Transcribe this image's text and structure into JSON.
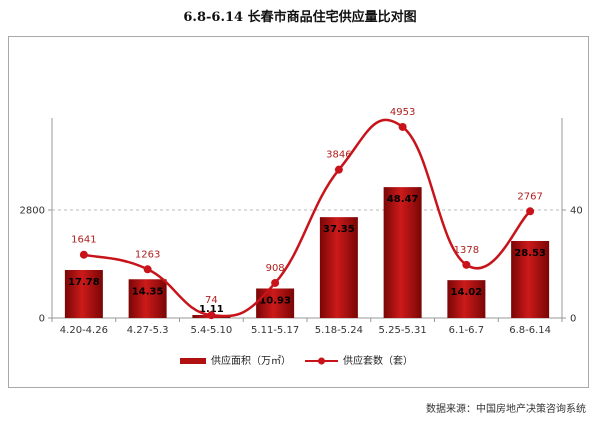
{
  "chart_data": {
    "type": "bar+line",
    "title": "6.8-6.14 长春市商品住宅供应量比对图",
    "categories": [
      "4.20-4.26",
      "4.27-5.3",
      "5.4-5.10",
      "5.11-5.17",
      "5.18-5.24",
      "5.25-5.31",
      "6.1-6.7",
      "6.8-6.14"
    ],
    "series": [
      {
        "name": "供应面积（万㎡）",
        "type": "bar",
        "axis": "right",
        "values": [
          17.78,
          14.35,
          1.11,
          10.93,
          37.35,
          48.47,
          14.02,
          28.53
        ],
        "labels": [
          "17.78",
          "14.35",
          "1.11",
          "10.93",
          "37.35",
          "48.47",
          "14.02",
          "28.53"
        ]
      },
      {
        "name": "供应套数（套）",
        "type": "line",
        "axis": "left",
        "values": [
          1641,
          1263,
          74,
          908,
          3846,
          4953,
          1378,
          2767
        ],
        "labels": [
          "1641",
          "1263",
          "74",
          "908",
          "3846",
          "4953",
          "1378",
          "2767"
        ]
      }
    ],
    "left_axis": {
      "ticks": [
        "0",
        "2800"
      ],
      "ylim": [
        0,
        7466
      ]
    },
    "right_axis": {
      "ticks": [
        "0",
        "40"
      ],
      "ylim": [
        0,
        106.7
      ]
    },
    "legend": "bottom",
    "colors": {
      "bar": "#b01010",
      "line": "#c8131a",
      "label_line": "#b02020"
    }
  },
  "footer": {
    "source": "数据来源：中国房地产决策咨询系统"
  }
}
